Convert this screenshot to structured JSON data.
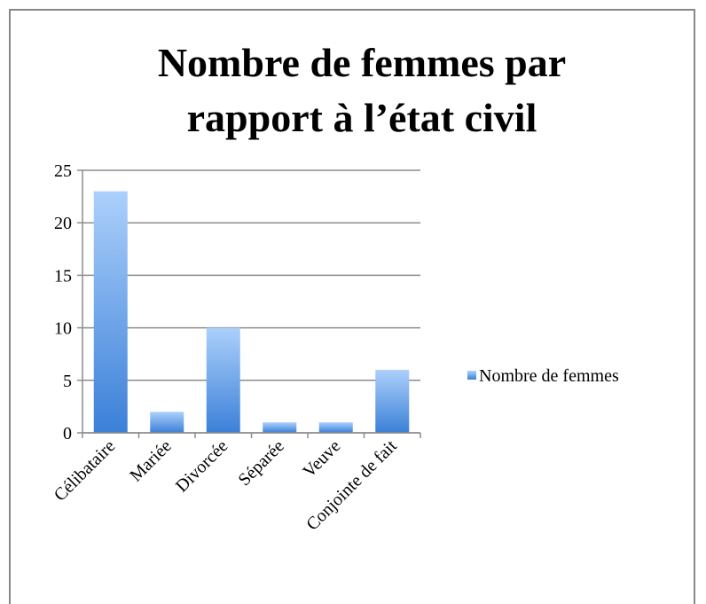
{
  "chart_data": {
    "type": "bar",
    "title": "Nombre de femmes par rapport à l’état civil",
    "categories": [
      "Célibataire",
      "Mariée",
      "Divorcée",
      "Séparée",
      "Veuve",
      "Conjointe de fait"
    ],
    "series": [
      {
        "name": "Nombre de femmes",
        "color": "#5b9bea",
        "values": [
          23,
          2,
          10,
          1,
          1,
          6
        ]
      }
    ],
    "ylim": [
      0,
      25
    ],
    "yticks": [
      0,
      5,
      10,
      15,
      20,
      25
    ],
    "grid": true,
    "legend": "right"
  }
}
